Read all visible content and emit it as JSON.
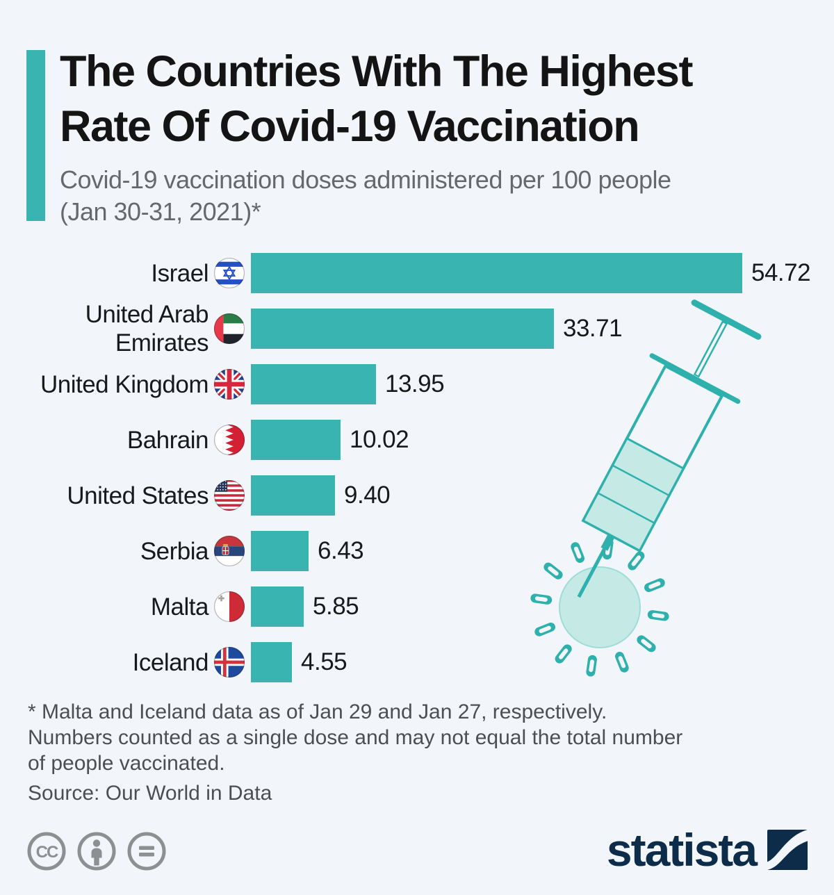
{
  "header": {
    "accent_color": "#39b4b0"
  },
  "chart_data": {
    "type": "bar",
    "orientation": "horizontal",
    "title": "The Countries With The Highest Rate Of Covid-19 Vaccination",
    "title_lines": [
      "The Countries With The Highest",
      "Rate Of Covid-19 Vaccination"
    ],
    "subtitle": "Covid-19 vaccination doses administered per 100 people (Jan 30-31, 2021)*",
    "subtitle_lines": [
      "Covid-19 vaccination doses administered per 100 people",
      "(Jan 30-31, 2021)*"
    ],
    "categories": [
      "Israel",
      "United Arab Emirates",
      "United Kingdom",
      "Bahrain",
      "United States",
      "Serbia",
      "Malta",
      "Iceland"
    ],
    "values": [
      54.72,
      33.71,
      13.95,
      10.02,
      9.4,
      6.43,
      5.85,
      4.55
    ],
    "value_labels": [
      "54.72",
      "33.71",
      "13.95",
      "10.02",
      "9.40",
      "6.43",
      "5.85",
      "4.55"
    ],
    "flags": [
      "israel-flag",
      "uae-flag",
      "uk-flag",
      "bahrain-flag",
      "us-flag",
      "serbia-flag",
      "malta-flag",
      "iceland-flag"
    ],
    "bar_color": "#39b4b0",
    "xlim": [
      0,
      57
    ],
    "grid": false,
    "legend": "none",
    "unit": "doses administered per 100 people"
  },
  "footnote": {
    "lines": [
      "* Malta and Iceland data as of Jan 29 and Jan 27, respectively.",
      "Numbers counted as a single dose and may not equal the total number",
      "of people vaccinated."
    ]
  },
  "source_label": "Source: Our World in Data",
  "branding": {
    "wordmark": "statista",
    "logo_color": "#0c2c49",
    "license_icons": [
      "creative-commons-icon",
      "attribution-icon",
      "no-derivatives-icon"
    ]
  },
  "illustration": {
    "name": "syringe-virus-illustration",
    "stroke_color": "#2eb0ac",
    "fill_color": "#c5eae6"
  }
}
